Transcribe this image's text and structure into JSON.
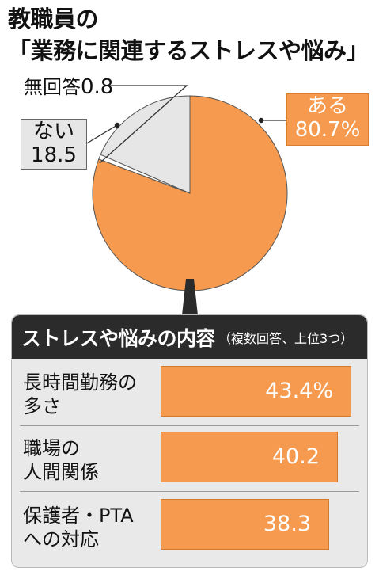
{
  "title": [
    "教職員の",
    "「業務に関連するストレスや悩み」"
  ],
  "chart_data": [
    {
      "type": "pie",
      "slices": [
        {
          "label": "ある",
          "value": 80.7,
          "display": "80.7%",
          "color": "#f59a4e"
        },
        {
          "label": "無回答",
          "value": 0.8,
          "display": "0.8",
          "color": "#ffffff"
        },
        {
          "label": "ない",
          "value": 18.5,
          "display": "18.5",
          "color": "#e6e6e6"
        }
      ],
      "start": "12 o'clock",
      "direction": "clockwise"
    },
    {
      "type": "bar",
      "orientation": "horizontal",
      "title": "ストレスや悩みの内容",
      "note": "（複数回答、上位3つ）",
      "categories": [
        [
          "長時間勤務の",
          "多さ"
        ],
        [
          "職場の",
          "人間関係"
        ],
        [
          "保護者・PTA",
          "への対応"
        ]
      ],
      "values": [
        43.4,
        40.2,
        38.3
      ],
      "value_labels": [
        "43.4%",
        "40.2",
        "38.3"
      ],
      "xlim": [
        0,
        45
      ],
      "color": "#f59a4e"
    }
  ]
}
